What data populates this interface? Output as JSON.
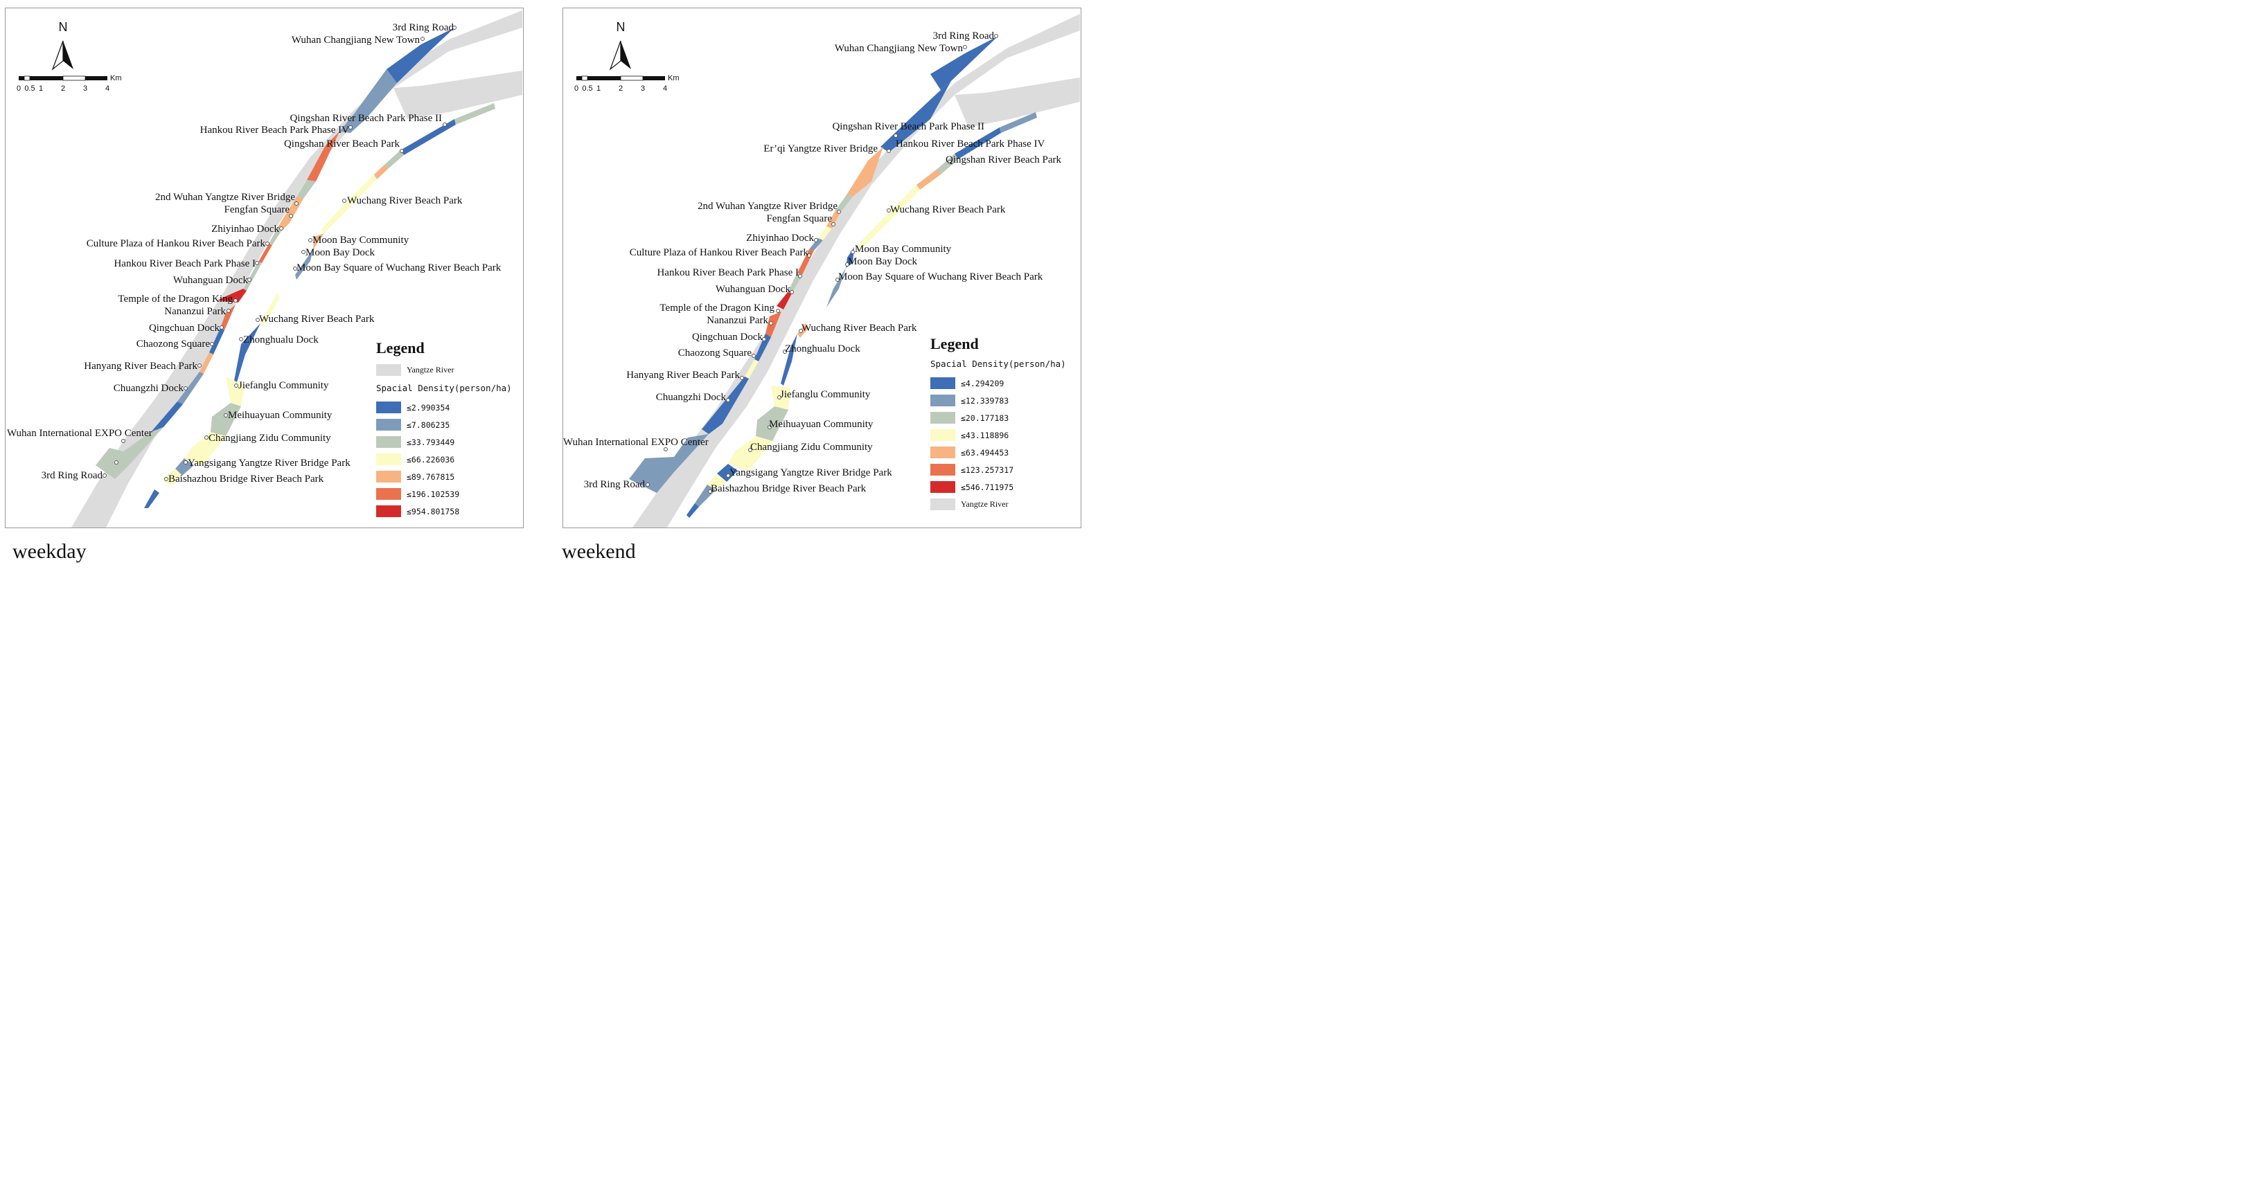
{
  "weekday": {
    "caption": "weekday",
    "north": "N",
    "scale": {
      "ticks": [
        "0",
        "0.5",
        "1",
        "2",
        "3",
        "4"
      ],
      "unit": "Km"
    },
    "legend": {
      "title": "Legend",
      "river": "Yangtze River",
      "heading": "Spacial Density(person/ha)",
      "classes": [
        {
          "label": "≤2.990354",
          "color": "#3e6eb5"
        },
        {
          "label": "≤7.806235",
          "color": "#7f9bba"
        },
        {
          "label": "≤33.793449",
          "color": "#bccaba"
        },
        {
          "label": "≤66.226036",
          "color": "#fbfbc3"
        },
        {
          "label": "≤89.767815",
          "color": "#f7b380"
        },
        {
          "label": "≤196.102539",
          "color": "#eb724e"
        },
        {
          "label": "≤954.801758",
          "color": "#d42b2a"
        }
      ]
    },
    "labels": {
      "l1": "3rd Ring Road",
      "l2": "Wuhan Changjiang New Town",
      "l3": "Qingshan River Beach Park Phase II",
      "l4": "Hankou River Beach Park Phase IV",
      "l5": "Qingshan River Beach Park",
      "l6": "2nd Wuhan Yangtze River Bridge",
      "l7": "Fengfan Square",
      "l8": "Wuchang River Beach Park",
      "l9": "Zhiyinhao Dock",
      "l10": "Moon Bay Community",
      "l11": "Culture Plaza of Hankou River Beach Park",
      "l12": "Moon Bay Dock",
      "l13": "Hankou River Beach Park Phase I",
      "l14": "Moon Bay Square of Wuchang River Beach Park",
      "l15": "Wuhanguan Dock",
      "l16": "Temple of the Dragon King",
      "l17": "Nananzui Park",
      "l18": "Wuchang River Beach Park",
      "l19": "Qingchuan Dock",
      "l20": "Zhonghualu Dock",
      "l21": "Chaozong Square",
      "l22": "Hanyang River Beach Park",
      "l23": "Jiefanglu Community",
      "l24": "Chuangzhi Dock",
      "l25": "Meihuayuan Community",
      "l26": "Wuhan International EXPO Center",
      "l27": "Changjiang Zidu Community",
      "l28": "Yangsigang Yangtze River Bridge Park",
      "l29": "3rd Ring Road",
      "l30": "Baishazhou Bridge River Beach Park"
    }
  },
  "weekend": {
    "caption": "weekend",
    "north": "N",
    "scale": {
      "ticks": [
        "0",
        "0.5",
        "1",
        "2",
        "3",
        "4"
      ],
      "unit": "Km"
    },
    "legend": {
      "title": "Legend",
      "river": "Yangtze River",
      "heading": "Spacial Density(person/ha)",
      "classes": [
        {
          "label": "≤4.294209",
          "color": "#3e6eb5"
        },
        {
          "label": "≤12.339783",
          "color": "#7f9bba"
        },
        {
          "label": "≤20.177183",
          "color": "#bccaba"
        },
        {
          "label": "≤43.118896",
          "color": "#fbfbc3"
        },
        {
          "label": "≤63.494453",
          "color": "#f7b380"
        },
        {
          "label": "≤123.257317",
          "color": "#eb724e"
        },
        {
          "label": "≤546.711975",
          "color": "#d42b2a"
        }
      ]
    },
    "labels": {
      "l1": "3rd Ring Road",
      "l2": "Wuhan Changjiang New Town",
      "l3": "Qingshan River Beach Park Phase II",
      "l4": "Er’qi Yangtze River Bridge",
      "l5": "Hankou River Beach Park Phase IV",
      "l6": "Qingshan River Beach Park",
      "l7": "2nd Wuhan Yangtze River Bridge",
      "l8": "Fengfan Square",
      "l9": "Wuchang River Beach Park",
      "l10": "Zhiyinhao Dock",
      "l11": "Moon Bay Community",
      "l12": "Culture Plaza of Hankou River Beach Park",
      "l13": "Moon Bay Dock",
      "l14": "Hankou River Beach Park Phase I",
      "l15": "Moon Bay Square of Wuchang River Beach Park",
      "l16": "Wuhanguan Dock",
      "l17": "Temple of the Dragon King",
      "l18": "Nananzui Park",
      "l19": "Wuchang River Beach Park",
      "l20": "Qingchuan Dock",
      "l21": "Zhonghualu Dock",
      "l22": "Chaozong Square",
      "l23": "Hanyang River Beach Park",
      "l24": "Jiefanglu Community",
      "l25": "Chuangzhi Dock",
      "l26": "Meihuayuan Community",
      "l27": "Wuhan International EXPO Center",
      "l28": "Changjiang Zidu Community",
      "l29": "3rd Ring Road",
      "l30": "Yangsigang Yangtze River Bridge Park",
      "l31": "Baishazhou Bridge River Beach Park"
    }
  }
}
